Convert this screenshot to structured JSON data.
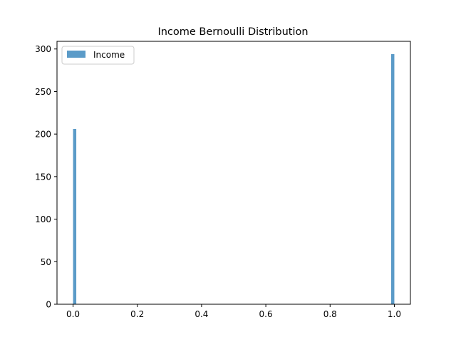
{
  "chart_data": {
    "type": "bar",
    "title": "Income Bernoulli Distribution",
    "xlabel": "",
    "ylabel": "",
    "xlim": [
      -0.05,
      1.05
    ],
    "ylim": [
      0,
      309
    ],
    "xticks": [
      0.0,
      0.2,
      0.4,
      0.6,
      0.8,
      1.0
    ],
    "xtick_labels": [
      "0.0",
      "0.2",
      "0.4",
      "0.6",
      "0.8",
      "1.0"
    ],
    "yticks": [
      0,
      50,
      100,
      150,
      200,
      250,
      300
    ],
    "ytick_labels": [
      "0",
      "50",
      "100",
      "150",
      "200",
      "250",
      "300"
    ],
    "bin_width": 0.01,
    "series": [
      {
        "name": "Income",
        "color": "#5b9bc8",
        "bars": [
          {
            "x_start": 0.0,
            "value": 206
          },
          {
            "x_start": 0.99,
            "value": 294
          }
        ]
      }
    ],
    "legend": {
      "position": "top-left"
    },
    "grid": false
  }
}
